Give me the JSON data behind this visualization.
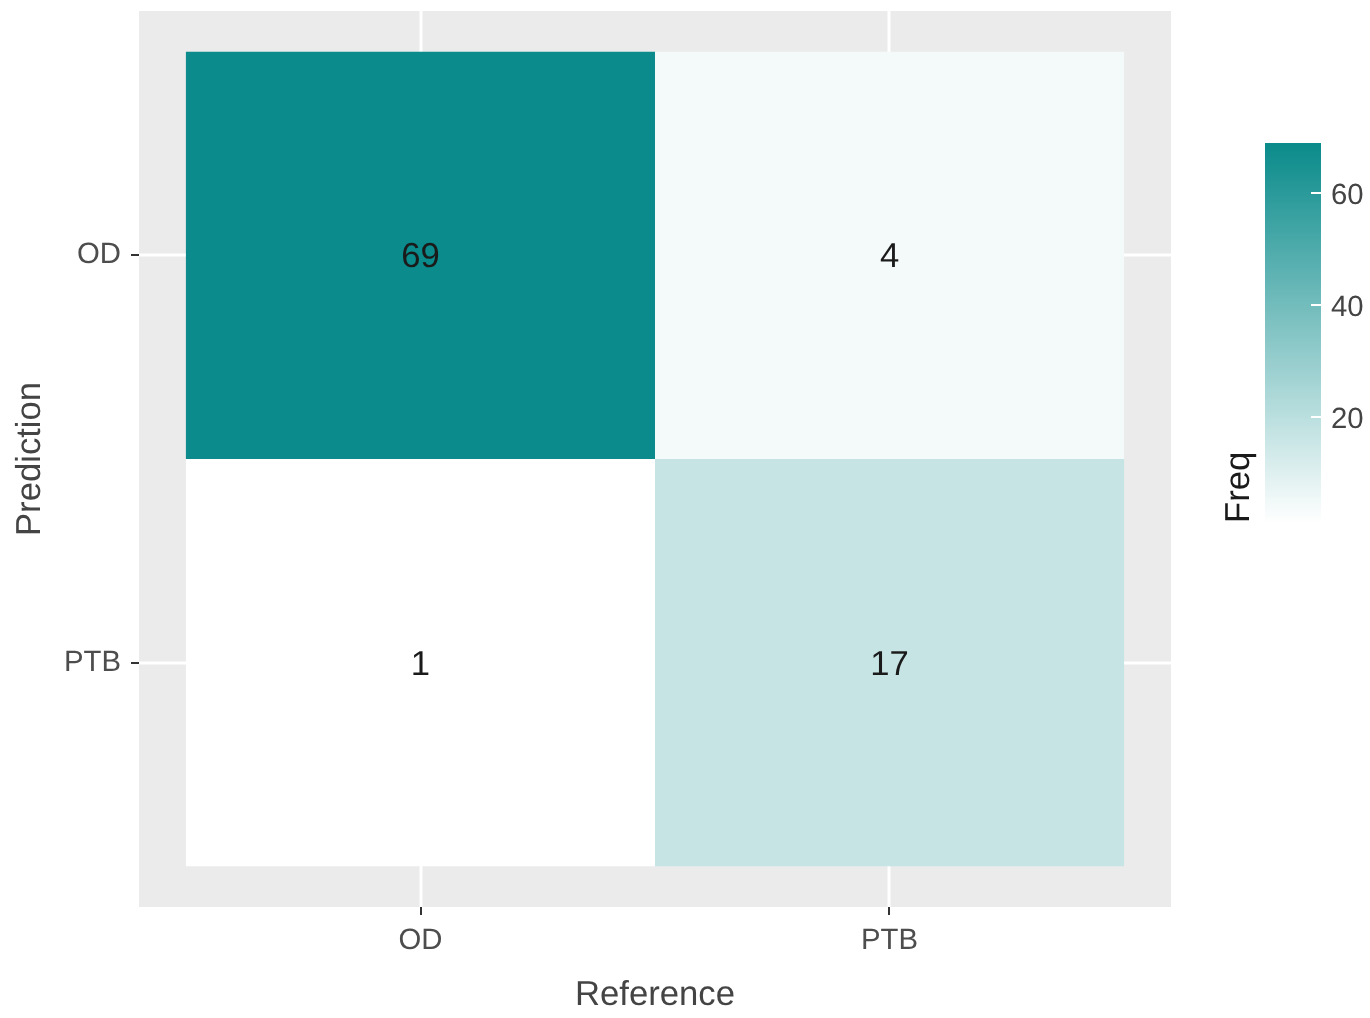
{
  "chart_data": {
    "type": "heatmap",
    "xlabel": "Reference",
    "ylabel": "Prediction",
    "legend_title": "Freq",
    "categories": [
      "OD",
      "PTB"
    ],
    "y_categories": [
      "OD",
      "PTB"
    ],
    "cells": [
      [
        69,
        4
      ],
      [
        1,
        17
      ]
    ],
    "data_labels": true,
    "color": "#0b8b8b",
    "clim": [
      1,
      69
    ],
    "cticks": [
      20,
      40,
      60
    ],
    "grid": true
  }
}
